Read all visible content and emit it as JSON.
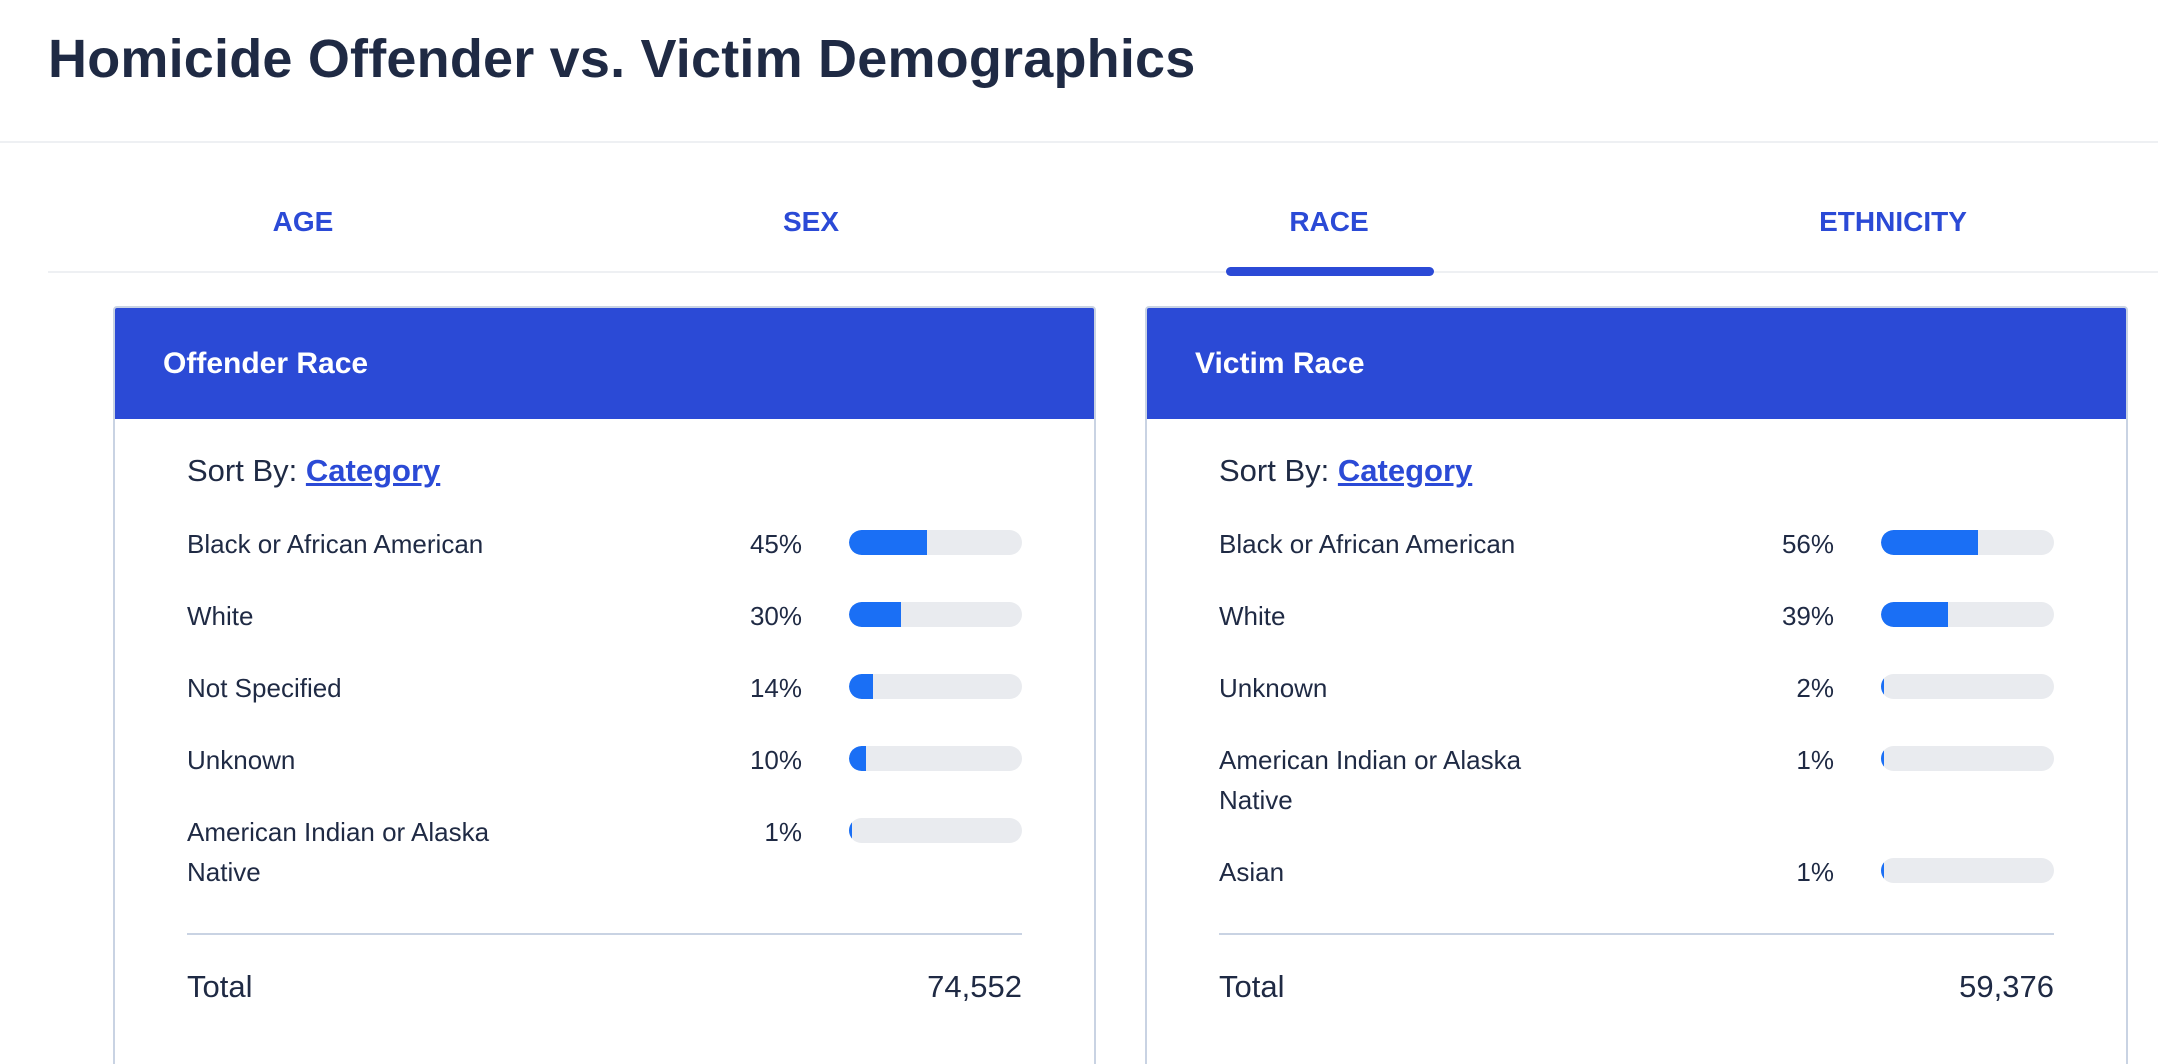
{
  "page_title": "Homicide Offender vs. Victim Demographics",
  "tabs": [
    {
      "label": "AGE",
      "selected": false
    },
    {
      "label": "SEX",
      "selected": false
    },
    {
      "label": "RACE",
      "selected": true
    },
    {
      "label": "ETHNICITY",
      "selected": false
    }
  ],
  "colors": {
    "accent": "#2b4ad6",
    "bar_fill": "#1a6ff5",
    "bar_track": "#e9ebef",
    "text": "#1f2a44"
  },
  "offender": {
    "title": "Offender Race",
    "sort_prefix": "Sort By:",
    "sort_value": "Category",
    "rows": [
      {
        "label": "Black or African American",
        "pct_text": "45%",
        "pct": 45
      },
      {
        "label": "White",
        "pct_text": "30%",
        "pct": 30
      },
      {
        "label": "Not Specified",
        "pct_text": "14%",
        "pct": 14
      },
      {
        "label": "Unknown",
        "pct_text": "10%",
        "pct": 10
      },
      {
        "label": "American Indian or Alaska Native",
        "pct_text": "1%",
        "pct": 1
      }
    ],
    "total_label": "Total",
    "total_value": "74,552"
  },
  "victim": {
    "title": "Victim Race",
    "sort_prefix": "Sort By:",
    "sort_value": "Category",
    "rows": [
      {
        "label": "Black or African American",
        "pct_text": "56%",
        "pct": 56
      },
      {
        "label": "White",
        "pct_text": "39%",
        "pct": 39
      },
      {
        "label": "Unknown",
        "pct_text": "2%",
        "pct": 2
      },
      {
        "label": "American Indian or Alaska Native",
        "pct_text": "1%",
        "pct": 1
      },
      {
        "label": "Asian",
        "pct_text": "1%",
        "pct": 1
      }
    ],
    "total_label": "Total",
    "total_value": "59,376"
  }
}
